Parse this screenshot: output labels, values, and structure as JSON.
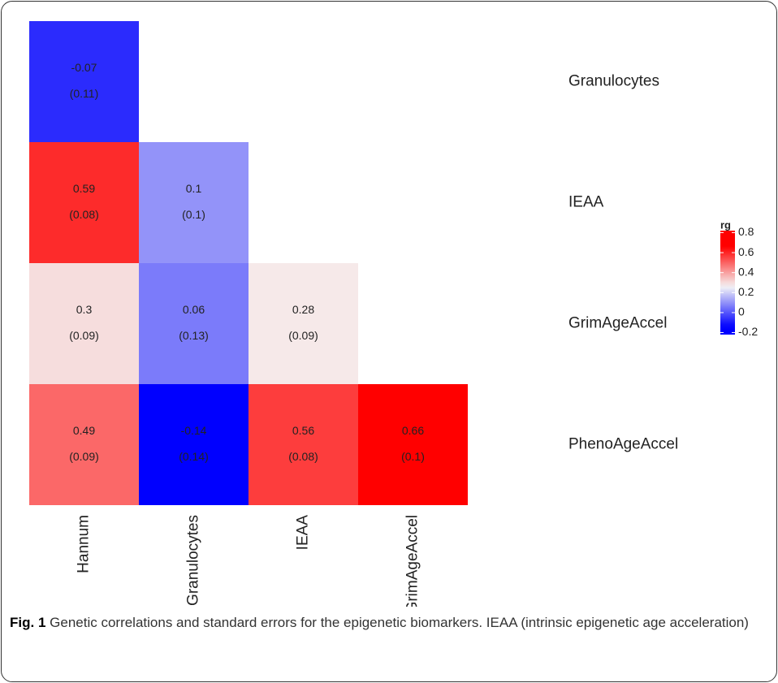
{
  "chart_data": {
    "type": "heatmap",
    "rows": [
      "Granulocytes",
      "IEAA",
      "GrimAgeAccel",
      "PhenoAgeAccel"
    ],
    "columns": [
      "Hannum",
      "Granulocytes",
      "IEAA",
      "GrimAgeAccel"
    ],
    "values": [
      [
        -0.07,
        null,
        null,
        null
      ],
      [
        0.59,
        0.1,
        null,
        null
      ],
      [
        0.3,
        0.06,
        0.28,
        null
      ],
      [
        0.49,
        -0.14,
        0.56,
        0.66
      ]
    ],
    "errors": [
      [
        0.11,
        null,
        null,
        null
      ],
      [
        0.08,
        0.1,
        null,
        null
      ],
      [
        0.09,
        0.13,
        0.09,
        null
      ],
      [
        0.09,
        0.14,
        0.08,
        0.1
      ]
    ],
    "error_labels": [
      [
        "(0.11)",
        null,
        null,
        null
      ],
      [
        "(0.08)",
        "(0.1)",
        null,
        null
      ],
      [
        "(0.09)",
        "(0.13)",
        "(0.09)",
        null
      ],
      [
        "(0.09)",
        "(0.14)",
        "(0.08)",
        "(0.1)"
      ]
    ],
    "color_scale": {
      "low": {
        "value": -0.14,
        "color": "#0000ff"
      },
      "mid": {
        "value": 0.26,
        "color": "#f5f5f5"
      },
      "high": {
        "value": 0.66,
        "color": "#ff0000"
      }
    },
    "legend_title": "rg",
    "colorbar_lim": [
      -0.22,
      0.82
    ],
    "colorbar_ticks": [
      0.8,
      0.6,
      0.4,
      0.2,
      0,
      -0.2
    ]
  },
  "caption": {
    "label": "Fig. 1",
    "text": "Genetic correlations and standard errors for the epigenetic biomarkers. IEAA (intrinsic epigenetic age acceleration)"
  }
}
